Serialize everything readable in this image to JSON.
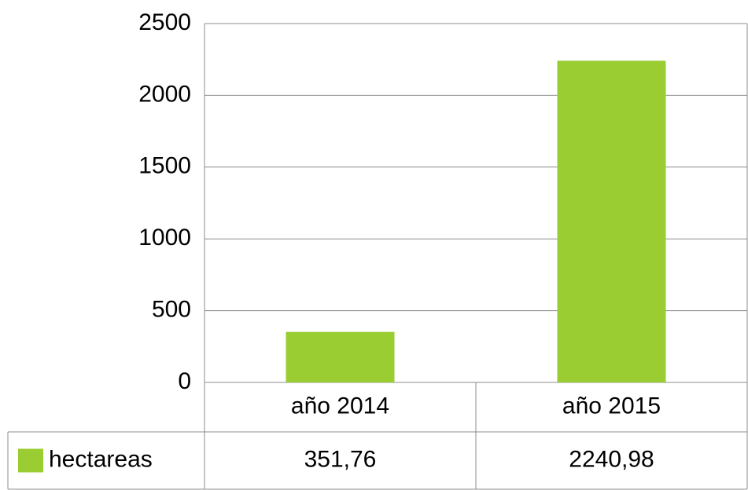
{
  "chart_data": {
    "type": "bar",
    "categories": [
      "año 2014",
      "año 2015"
    ],
    "series": [
      {
        "name": "hectareas",
        "color": "#9ACD32",
        "values": [
          351.76,
          2240.98
        ],
        "value_labels": [
          "351,76",
          "2240,98"
        ]
      }
    ],
    "ylim": [
      0,
      2500
    ],
    "yticks": [
      0,
      500,
      1000,
      1500,
      2000,
      2500
    ],
    "grid": true,
    "data_table": true
  }
}
